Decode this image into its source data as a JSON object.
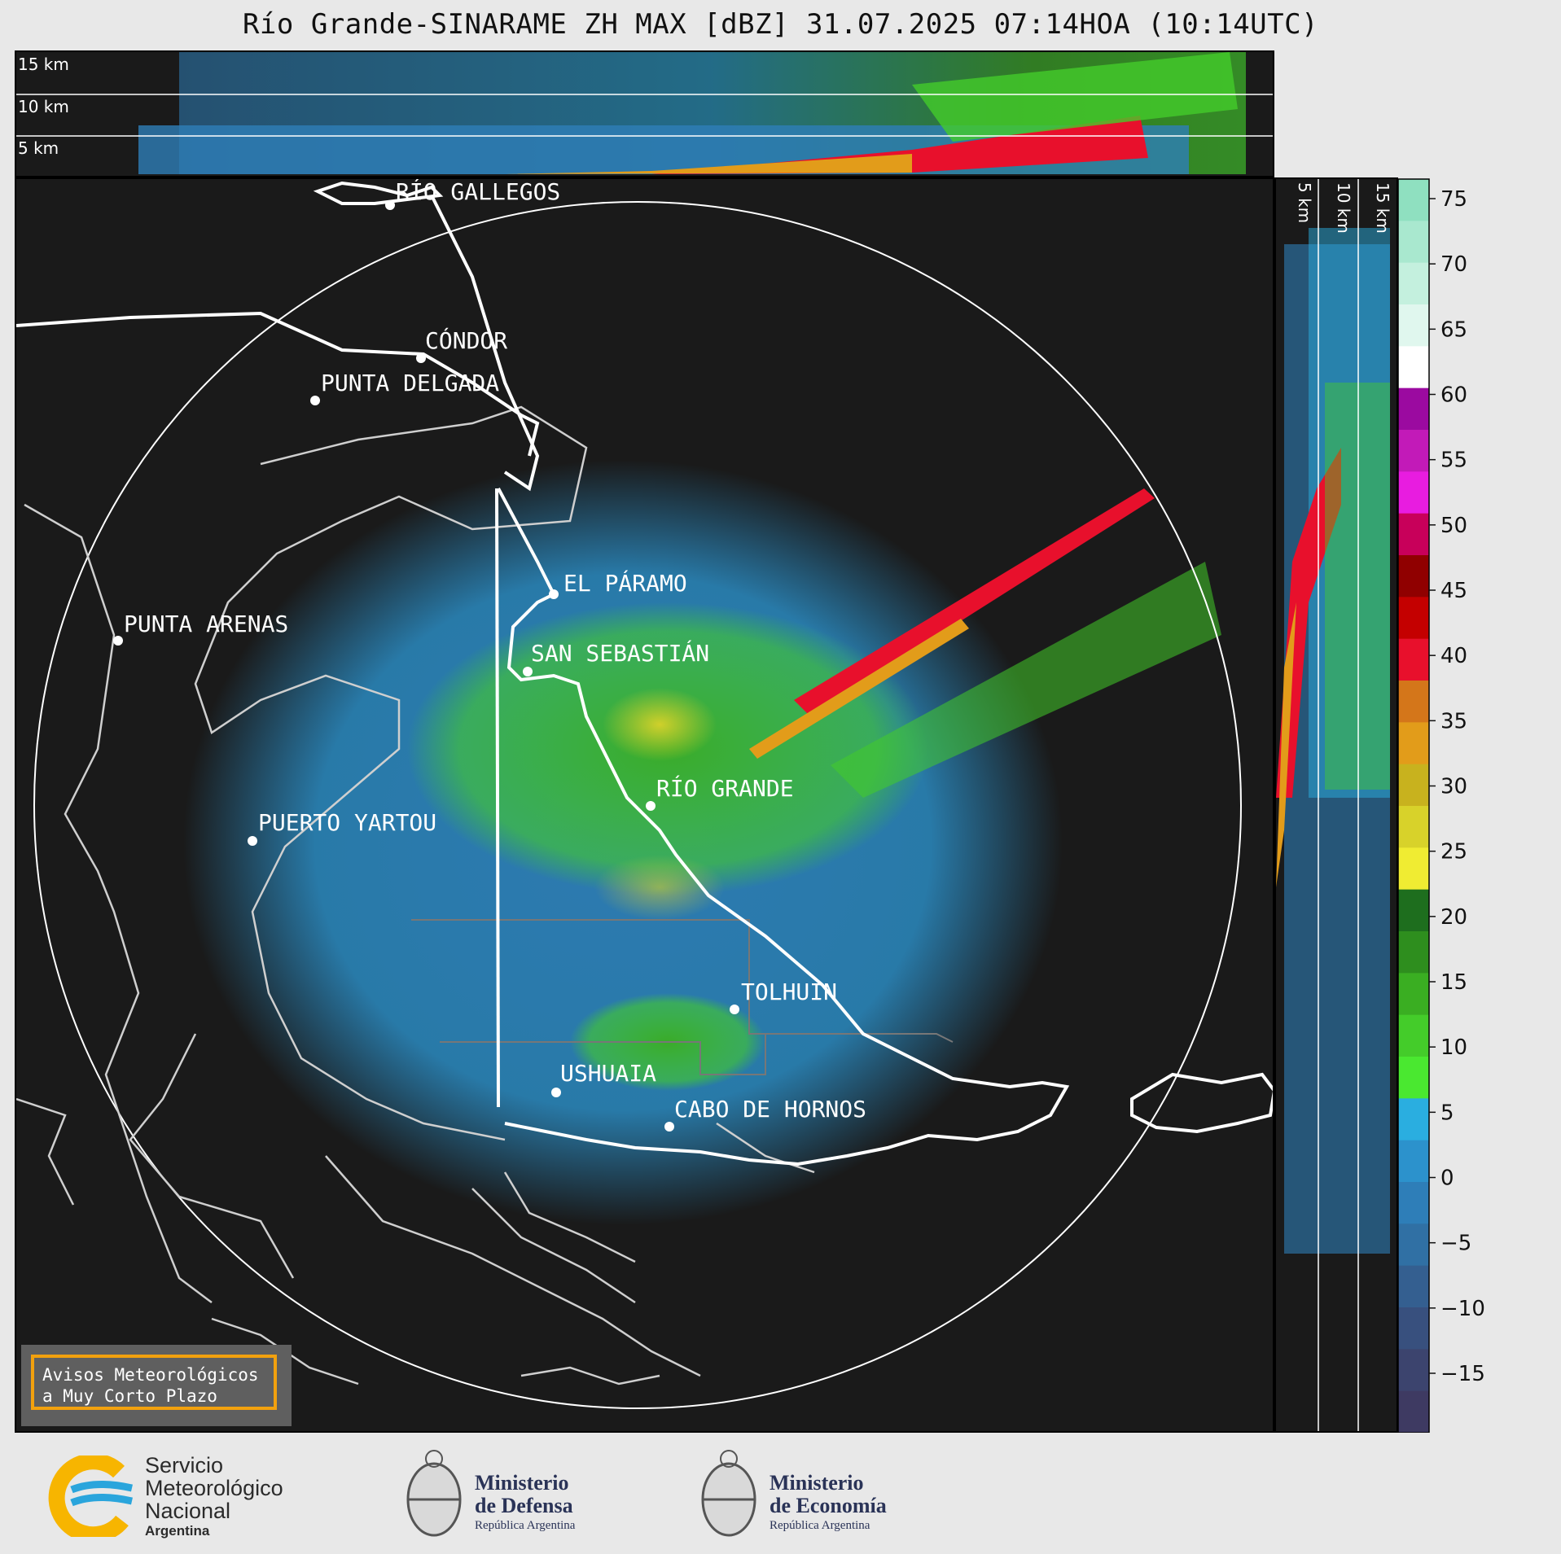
{
  "title": "Río Grande-SINARAME ZH MAX [dBZ] 31.07.2025 07:14HOA (10:14UTC)",
  "top_panel": {
    "height_labels": [
      "15 km",
      "10 km",
      "5 km"
    ]
  },
  "right_panel": {
    "height_labels": [
      "5 km",
      "10 km",
      "15 km"
    ]
  },
  "places": [
    {
      "name": "RÍO GALLEGOS"
    },
    {
      "name": "CÓNDOR"
    },
    {
      "name": "PUNTA DELGADA"
    },
    {
      "name": "EL PÁRAMO"
    },
    {
      "name": "PUNTA ARENAS"
    },
    {
      "name": "SAN SEBASTIÁN"
    },
    {
      "name": "RÍO GRANDE"
    },
    {
      "name": "PUERTO YARTOU"
    },
    {
      "name": "TOLHUIN"
    },
    {
      "name": "USHUAIA"
    },
    {
      "name": "CABO DE HORNOS"
    }
  ],
  "colorbar": {
    "unit": "dBZ",
    "ticks": [
      "75",
      "70",
      "65",
      "60",
      "55",
      "50",
      "45",
      "40",
      "35",
      "30",
      "25",
      "20",
      "15",
      "10",
      "5",
      "0",
      "−5",
      "−10",
      "−15"
    ],
    "colors": [
      "#8fe0c0",
      "#a9e8cf",
      "#c4f0de",
      "#e0f7ee",
      "#ffffff",
      "#9b0aa0",
      "#c21ab8",
      "#e81ce0",
      "#c8005a",
      "#900000",
      "#c40000",
      "#e8102c",
      "#d4761a",
      "#e29c1a",
      "#c8b21e",
      "#d8d22a",
      "#f0ec32",
      "#1e6e1e",
      "#2e8e1e",
      "#3aae22",
      "#44cc2a",
      "#4ae830",
      "#2aaee0",
      "#2c92cc",
      "#2e7eb8",
      "#3070a4",
      "#345f90",
      "#38507e",
      "#3c446e",
      "#3e3a62"
    ]
  },
  "notice": {
    "line1": "Avisos Meteorológicos",
    "line2": "a Muy Corto Plazo"
  },
  "logos": {
    "smn": {
      "line1": "Servicio",
      "line2": "Meteorológico",
      "line3": "Nacional",
      "line4": "Argentina"
    },
    "defensa": {
      "line1": "Ministerio",
      "line2": "de Defensa",
      "line3": "República Argentina"
    },
    "economia": {
      "line1": "Ministerio",
      "line2": "de Economía",
      "line3": "República Argentina"
    }
  },
  "colors": {
    "coast": "#cfcfcf",
    "border": "#ffffff",
    "background": "#1a1a1a",
    "accent": "#f2a10e"
  }
}
